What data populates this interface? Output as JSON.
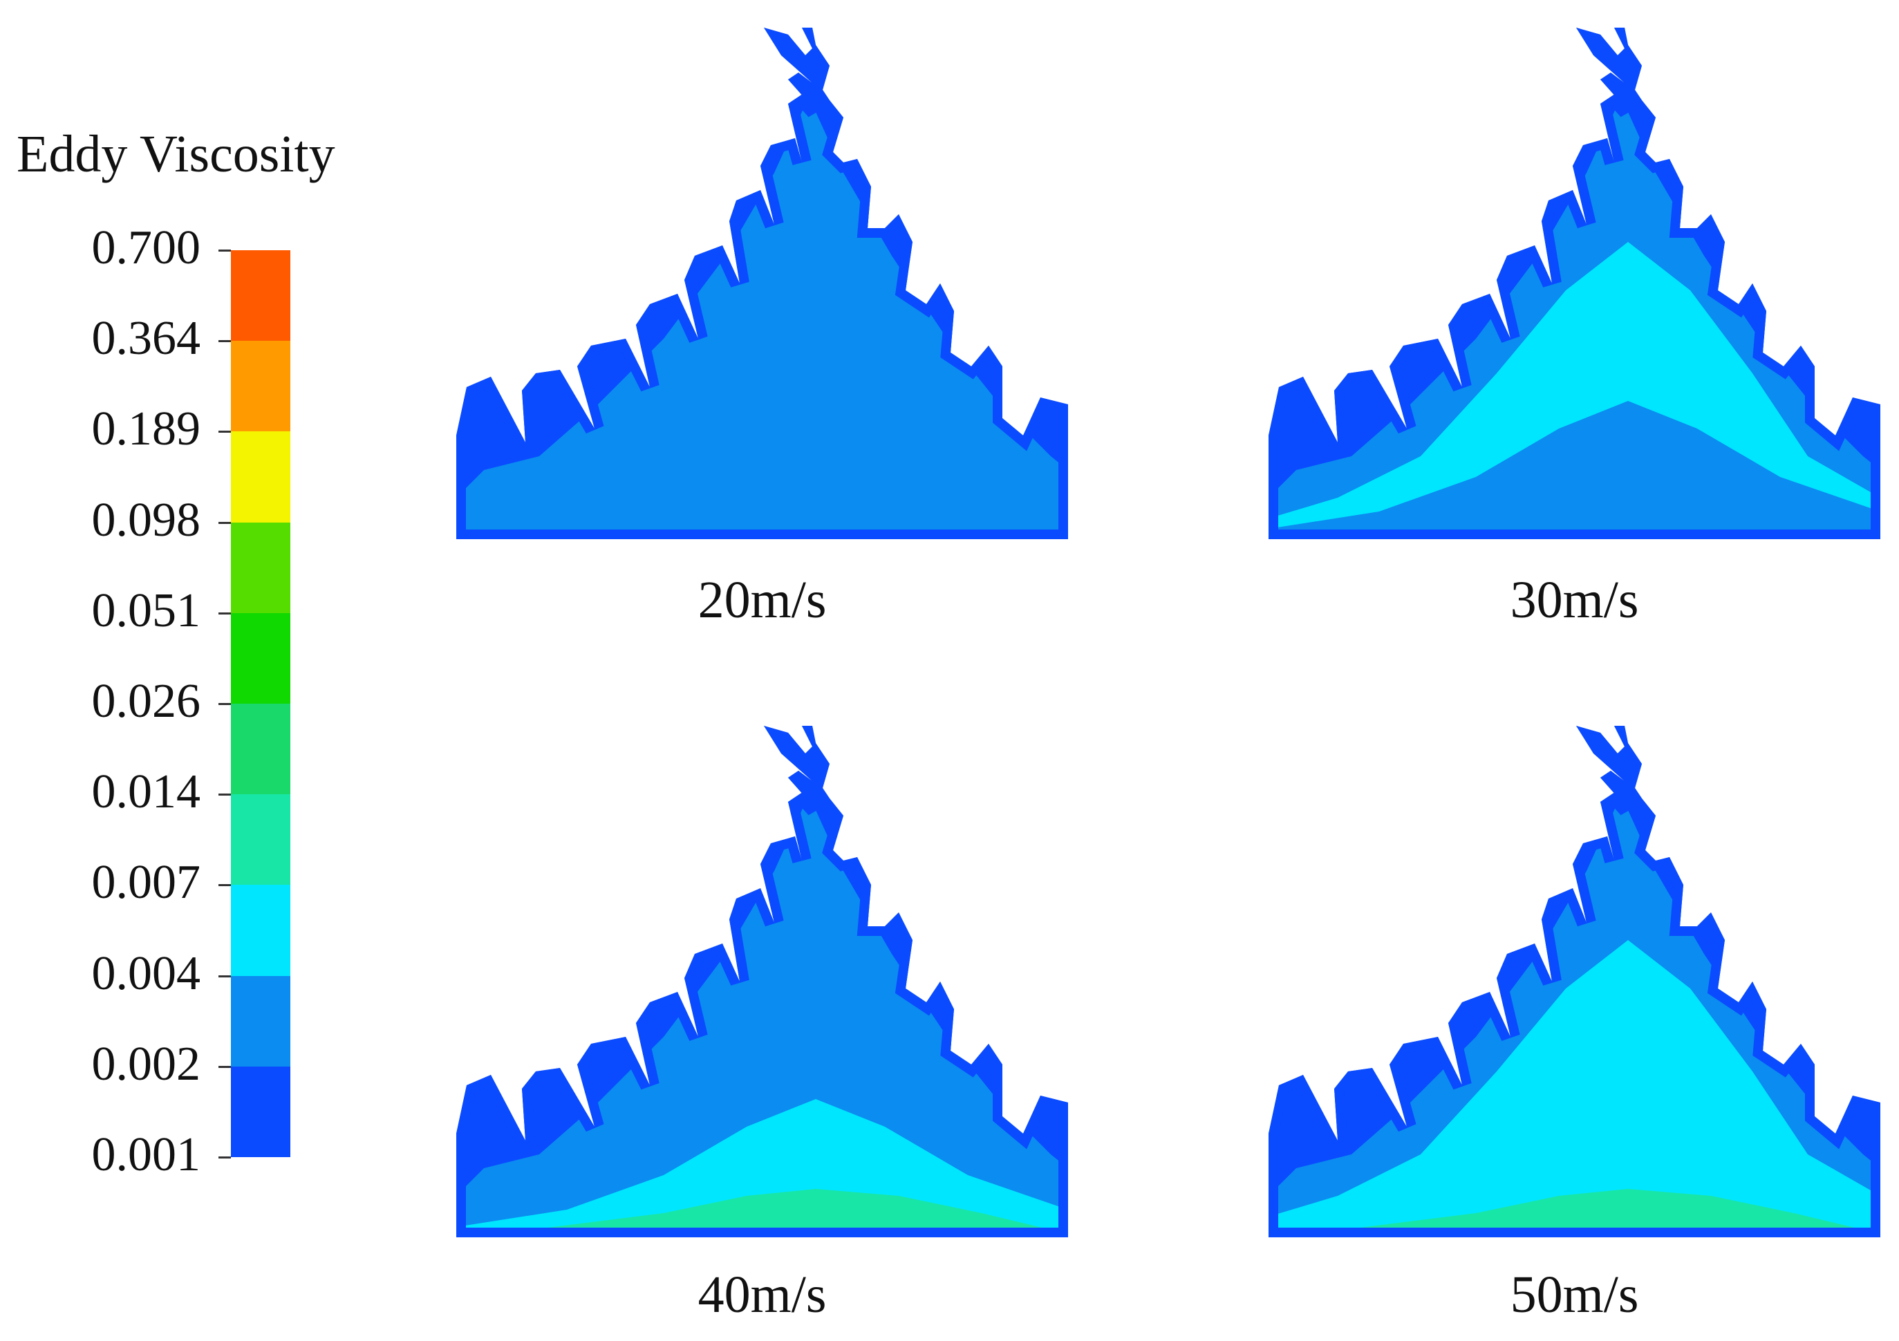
{
  "legend": {
    "title": "Eddy Viscosity",
    "levels": [
      "0.001",
      "0.002",
      "0.004",
      "0.007",
      "0.014",
      "0.026",
      "0.051",
      "0.098",
      "0.189",
      "0.364",
      "0.700"
    ],
    "colors": [
      "#0a4bff",
      "#0b8cf0",
      "#00e6ff",
      "#18e6a6",
      "#19d96a",
      "#0fd900",
      "#55dd00",
      "#f4f400",
      "#ff9a00",
      "#ff5a00"
    ]
  },
  "panels": [
    {
      "caption": "20m/s",
      "zones": [
        "#0a4bff",
        "#0b8cf0",
        "#0b8cf0",
        "#0b8cf0",
        "#0b8cf0"
      ]
    },
    {
      "caption": "30m/s",
      "zones": [
        "#0a4bff",
        "#0b8cf0",
        "#00e6ff",
        "#0b8cf0",
        "#0b8cf0"
      ]
    },
    {
      "caption": "40m/s",
      "zones": [
        "#0a4bff",
        "#0b8cf0",
        "#0b8cf0",
        "#00e6ff",
        "#18e6a6"
      ]
    },
    {
      "caption": "50m/s",
      "zones": [
        "#0a4bff",
        "#0b8cf0",
        "#00e6ff",
        "#00e6ff",
        "#18e6a6"
      ]
    }
  ]
}
